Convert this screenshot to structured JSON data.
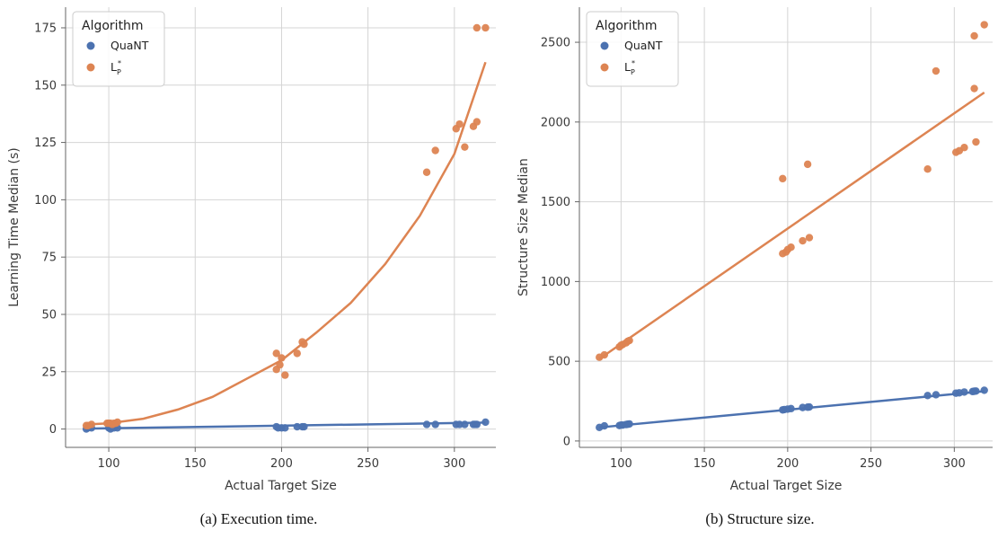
{
  "colors": {
    "quant": "#4c72b0",
    "lp": "#dd8452",
    "grid": "#d4d4d4",
    "axis": "#666666"
  },
  "captions": [
    "(a) Execution time.",
    "(b) Structure size."
  ],
  "chart_data": [
    {
      "type": "scatter",
      "xlabel": "Actual Target Size",
      "ylabel": "Learning Time Median (s)",
      "xlim": [
        75,
        324
      ],
      "ylim": [
        -8,
        184
      ],
      "xticks": [
        100,
        150,
        200,
        250,
        300
      ],
      "yticks": [
        0,
        25,
        50,
        75,
        100,
        125,
        150,
        175
      ],
      "grid": true,
      "legend": {
        "title": "Algorithm",
        "placement": "top-left",
        "entries": [
          {
            "label": "QuaNT",
            "sub": "",
            "sup": ""
          },
          {
            "label": "L",
            "sub": "P",
            "sup": "*"
          }
        ]
      },
      "series": [
        {
          "name": "QuaNT",
          "color_key": "quant",
          "points": [
            [
              87,
              0
            ],
            [
              88,
              0.5
            ],
            [
              90,
              0.5
            ],
            [
              100,
              0.5
            ],
            [
              101,
              0
            ],
            [
              103,
              0.5
            ],
            [
              105,
              0.5
            ],
            [
              197,
              1
            ],
            [
              198,
              0.5
            ],
            [
              200,
              0.5
            ],
            [
              202,
              0.5
            ],
            [
              209,
              1
            ],
            [
              212,
              1
            ],
            [
              213,
              1
            ],
            [
              284,
              2
            ],
            [
              289,
              2
            ],
            [
              301,
              2
            ],
            [
              303,
              2
            ],
            [
              306,
              2
            ],
            [
              311,
              2
            ],
            [
              312,
              2
            ],
            [
              313,
              2
            ],
            [
              318,
              3
            ]
          ],
          "fit": {
            "kind": "linear",
            "x0": 87,
            "y0": 0.2,
            "x1": 318,
            "y1": 2.8
          }
        },
        {
          "name": "L",
          "color_key": "lp",
          "points": [
            [
              87,
              1.5
            ],
            [
              88,
              1.5
            ],
            [
              90,
              2
            ],
            [
              99,
              2.5
            ],
            [
              100,
              2.5
            ],
            [
              101,
              2.5
            ],
            [
              102,
              2
            ],
            [
              103,
              2.5
            ],
            [
              104,
              2.5
            ],
            [
              105,
              3
            ],
            [
              197,
              26
            ],
            [
              197,
              33
            ],
            [
              199,
              28
            ],
            [
              200,
              31
            ],
            [
              202,
              23.5
            ],
            [
              209,
              33
            ],
            [
              212,
              38
            ],
            [
              213,
              37
            ],
            [
              284,
              112
            ],
            [
              289,
              121.5
            ],
            [
              301,
              131
            ],
            [
              303,
              133
            ],
            [
              306,
              123
            ],
            [
              311,
              132
            ],
            [
              313,
              134
            ],
            [
              313,
              175
            ],
            [
              318,
              175
            ]
          ],
          "fit": {
            "kind": "curve",
            "pts": [
              [
                87,
                2
              ],
              [
                100,
                2.5
              ],
              [
                120,
                4.5
              ],
              [
                140,
                8.5
              ],
              [
                160,
                14
              ],
              [
                180,
                22
              ],
              [
                200,
                30
              ],
              [
                220,
                42
              ],
              [
                240,
                55
              ],
              [
                260,
                72
              ],
              [
                280,
                93
              ],
              [
                300,
                120
              ],
              [
                318,
                160
              ]
            ]
          }
        }
      ]
    },
    {
      "type": "scatter",
      "xlabel": "Actual Target Size",
      "ylabel": "Structure Size Median",
      "xlim": [
        75,
        323
      ],
      "ylim": [
        -40,
        2720
      ],
      "xticks": [
        100,
        150,
        200,
        250,
        300
      ],
      "yticks": [
        0,
        500,
        1000,
        1500,
        2000,
        2500
      ],
      "grid": true,
      "legend": {
        "title": "Algorithm",
        "placement": "top-left",
        "entries": [
          {
            "label": "QuaNT",
            "sub": "",
            "sup": ""
          },
          {
            "label": "L",
            "sub": "P",
            "sup": "*"
          }
        ]
      },
      "series": [
        {
          "name": "QuaNT",
          "color_key": "quant",
          "points": [
            [
              87,
              85
            ],
            [
              90,
              95
            ],
            [
              99,
              97
            ],
            [
              100,
              100
            ],
            [
              101,
              100
            ],
            [
              103,
              103
            ],
            [
              104,
              105
            ],
            [
              105,
              107
            ],
            [
              197,
              195
            ],
            [
              198,
              197
            ],
            [
              200,
              200
            ],
            [
              202,
              203
            ],
            [
              209,
              210
            ],
            [
              212,
              212
            ],
            [
              213,
              213
            ],
            [
              284,
              285
            ],
            [
              289,
              290
            ],
            [
              301,
              300
            ],
            [
              303,
              302
            ],
            [
              306,
              307
            ],
            [
              311,
              310
            ],
            [
              312,
              312
            ],
            [
              313,
              313
            ],
            [
              318,
              318
            ]
          ],
          "fit": {
            "kind": "linear",
            "x0": 87,
            "y0": 85,
            "x1": 318,
            "y1": 312
          }
        },
        {
          "name": "L",
          "color_key": "lp",
          "points": [
            [
              87,
              525
            ],
            [
              90,
              540
            ],
            [
              99,
              590
            ],
            [
              100,
              600
            ],
            [
              101,
              605
            ],
            [
              103,
              615
            ],
            [
              104,
              625
            ],
            [
              105,
              630
            ],
            [
              197,
              1175
            ],
            [
              197,
              1645
            ],
            [
              199,
              1185
            ],
            [
              200,
              1200
            ],
            [
              202,
              1215
            ],
            [
              209,
              1255
            ],
            [
              212,
              1735
            ],
            [
              213,
              1275
            ],
            [
              284,
              1705
            ],
            [
              289,
              2320
            ],
            [
              301,
              1810
            ],
            [
              303,
              1820
            ],
            [
              306,
              1840
            ],
            [
              312,
              2210
            ],
            [
              312,
              2540
            ],
            [
              313,
              1875
            ],
            [
              318,
              2610
            ]
          ],
          "fit": {
            "kind": "linear",
            "x0": 87,
            "y0": 515,
            "x1": 318,
            "y1": 2185
          }
        }
      ]
    }
  ]
}
